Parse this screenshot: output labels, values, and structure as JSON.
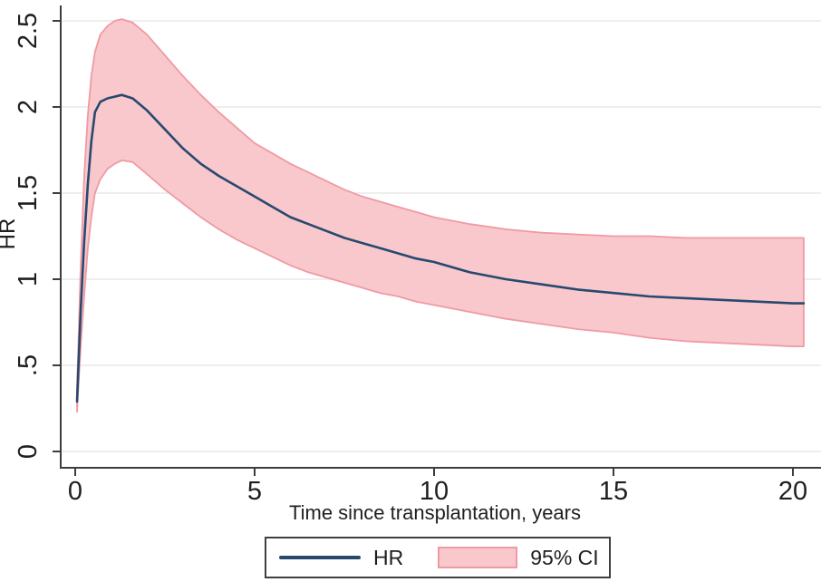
{
  "chart_data": {
    "type": "line",
    "title": "",
    "xlabel": "Time since transplantation, years",
    "ylabel": "HR",
    "grid": "horizontal",
    "legend_position": "bottom",
    "xlim": [
      -0.4,
      20.8
    ],
    "ylim": [
      0,
      2.6
    ],
    "x_ticks": [
      {
        "value": 0,
        "label": "0"
      },
      {
        "value": 5,
        "label": "5"
      },
      {
        "value": 10,
        "label": "10"
      },
      {
        "value": 15,
        "label": "15"
      },
      {
        "value": 20,
        "label": "20"
      }
    ],
    "y_ticks": [
      {
        "value": 0,
        "label": "0"
      },
      {
        "value": 0.5,
        "label": ".5"
      },
      {
        "value": 1,
        "label": "1"
      },
      {
        "value": 1.5,
        "label": "1.5"
      },
      {
        "value": 2,
        "label": "2"
      },
      {
        "value": 2.5,
        "label": "2.5"
      }
    ],
    "x": [
      0.05,
      0.15,
      0.25,
      0.35,
      0.45,
      0.55,
      0.7,
      0.9,
      1.1,
      1.3,
      1.6,
      2,
      2.5,
      3,
      3.5,
      4,
      4.5,
      5,
      5.5,
      6,
      6.5,
      7,
      7.5,
      8,
      8.5,
      9,
      9.5,
      10,
      11,
      12,
      13,
      14,
      15,
      16,
      17,
      18,
      19,
      20,
      20.3
    ],
    "series": [
      {
        "name": "HR",
        "type": "line",
        "color": "#27496f",
        "values": [
          0.29,
          0.8,
          1.22,
          1.55,
          1.8,
          1.97,
          2.03,
          2.05,
          2.06,
          2.07,
          2.05,
          1.98,
          1.87,
          1.76,
          1.67,
          1.6,
          1.54,
          1.48,
          1.42,
          1.36,
          1.32,
          1.28,
          1.24,
          1.21,
          1.18,
          1.15,
          1.12,
          1.1,
          1.04,
          1.0,
          0.97,
          0.94,
          0.92,
          0.9,
          0.89,
          0.88,
          0.87,
          0.86,
          0.86
        ]
      },
      {
        "name": "95% CI",
        "type": "band",
        "fill": "#f9c8cc",
        "border": "#ef9aa2",
        "lower": [
          0.23,
          0.6,
          0.9,
          1.18,
          1.36,
          1.5,
          1.58,
          1.64,
          1.67,
          1.69,
          1.68,
          1.61,
          1.52,
          1.44,
          1.36,
          1.29,
          1.23,
          1.18,
          1.13,
          1.08,
          1.04,
          1.01,
          0.98,
          0.95,
          0.92,
          0.9,
          0.87,
          0.85,
          0.81,
          0.77,
          0.74,
          0.71,
          0.69,
          0.66,
          0.64,
          0.63,
          0.62,
          0.61,
          0.61
        ],
        "upper": [
          0.36,
          1.05,
          1.6,
          1.95,
          2.18,
          2.32,
          2.42,
          2.47,
          2.5,
          2.51,
          2.49,
          2.42,
          2.3,
          2.18,
          2.07,
          1.97,
          1.88,
          1.79,
          1.73,
          1.67,
          1.62,
          1.57,
          1.52,
          1.48,
          1.45,
          1.42,
          1.39,
          1.36,
          1.32,
          1.29,
          1.27,
          1.26,
          1.25,
          1.25,
          1.24,
          1.24,
          1.24,
          1.24,
          1.24
        ]
      }
    ],
    "legend": {
      "entries": [
        {
          "label": "HR",
          "swatch": "line"
        },
        {
          "label": "95% CI",
          "swatch": "box"
        }
      ]
    }
  },
  "colors": {
    "axis": "#3d3d3d",
    "grid": "#e8e8e8",
    "tick_text": "#1f1f1f",
    "background": "#ffffff"
  }
}
